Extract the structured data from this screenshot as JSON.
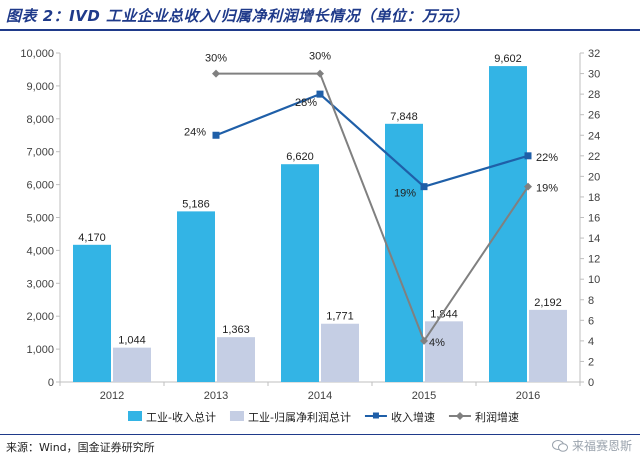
{
  "title": "图表 2：IVD 工业企业总收入/归属净利润增长情况（单位：万元）",
  "source": "来源：Wind，国金证券研究所",
  "watermark": "来福赛恩斯",
  "chart_data": {
    "type": "bar",
    "categories": [
      "2012",
      "2013",
      "2014",
      "2015",
      "2016"
    ],
    "left_axis": {
      "min": 0,
      "max": 10000,
      "step": 1000,
      "ticks": [
        "0",
        "1,000",
        "2,000",
        "3,000",
        "4,000",
        "5,000",
        "6,000",
        "7,000",
        "8,000",
        "9,000",
        "10,000"
      ]
    },
    "right_axis": {
      "min": 0,
      "max": 32,
      "step": 2,
      "ticks": [
        "0",
        "2",
        "4",
        "6",
        "8",
        "10",
        "12",
        "14",
        "16",
        "18",
        "20",
        "22",
        "24",
        "26",
        "28",
        "30",
        "32"
      ]
    },
    "bar_series": [
      {
        "name": "工业-收入总计",
        "values": [
          4170,
          5186,
          6620,
          7848,
          9602
        ],
        "labels": [
          "4,170",
          "5,186",
          "6,620",
          "7,848",
          "9,602"
        ],
        "color": "#33b4e5"
      },
      {
        "name": "工业-归属净利润总计",
        "values": [
          1044,
          1363,
          1771,
          1844,
          2192
        ],
        "labels": [
          "1,044",
          "1,363",
          "1,771",
          "1,844",
          "2,192"
        ],
        "color": "#c5cee4"
      }
    ],
    "line_series": [
      {
        "name": "收入增速",
        "categories": [
          "2013",
          "2014",
          "2015",
          "2016"
        ],
        "values": [
          24,
          28,
          19,
          22
        ],
        "labels": [
          "24%",
          "28%",
          "19%",
          "22%"
        ],
        "color": "#1f5fa8",
        "marker": "square"
      },
      {
        "name": "利润增速",
        "categories": [
          "2013",
          "2014",
          "2015",
          "2016"
        ],
        "values": [
          30,
          30,
          4,
          19
        ],
        "labels": [
          "30%",
          "30%",
          "4%",
          "19%"
        ],
        "color": "#808080",
        "marker": "diamond"
      }
    ],
    "legend_position": "bottom"
  }
}
